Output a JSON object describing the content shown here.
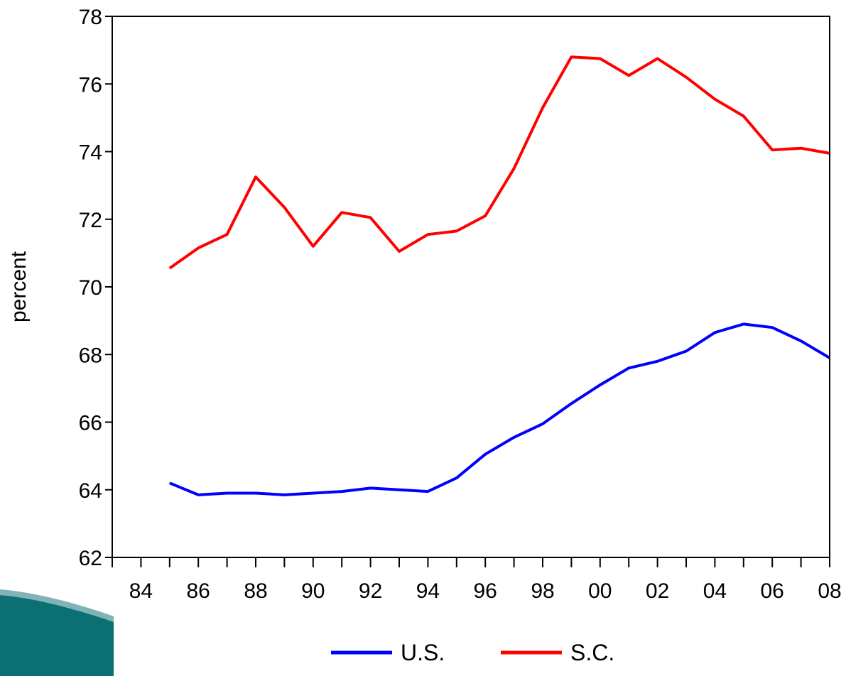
{
  "chart_data": {
    "type": "line",
    "title": "",
    "xlabel": "",
    "ylabel": "percent",
    "x": [
      1985,
      1986,
      1987,
      1988,
      1989,
      1990,
      1991,
      1992,
      1993,
      1994,
      1995,
      1996,
      1997,
      1998,
      1999,
      2000,
      2001,
      2002,
      2003,
      2004,
      2005,
      2006,
      2007,
      2008
    ],
    "xlim": [
      1983,
      2008
    ],
    "x_tick_values": [
      1984,
      1986,
      1988,
      1990,
      1992,
      1994,
      1996,
      1998,
      2000,
      2002,
      2004,
      2006,
      2008
    ],
    "x_tick_labels": [
      "84",
      "86",
      "88",
      "90",
      "92",
      "94",
      "96",
      "98",
      "00",
      "02",
      "04",
      "06",
      "08"
    ],
    "ylim": [
      62,
      78
    ],
    "y_tick_values": [
      62,
      64,
      66,
      68,
      70,
      72,
      74,
      76,
      78
    ],
    "y_tick_labels": [
      "62",
      "64",
      "66",
      "68",
      "70",
      "72",
      "74",
      "76",
      "78"
    ],
    "grid": false,
    "legend_position": "bottom",
    "series": [
      {
        "name": "U.S.",
        "color": "#0000ff",
        "values": [
          64.2,
          63.85,
          63.9,
          63.9,
          63.85,
          63.9,
          63.95,
          64.05,
          64.0,
          63.95,
          64.35,
          65.05,
          65.55,
          65.95,
          66.55,
          67.1,
          67.6,
          67.8,
          68.1,
          68.65,
          68.9,
          68.8,
          68.4,
          67.9
        ]
      },
      {
        "name": "S.C.",
        "color": "#ff0000",
        "values": [
          70.55,
          71.15,
          71.55,
          73.25,
          72.35,
          71.2,
          72.2,
          72.05,
          71.05,
          71.55,
          71.65,
          72.1,
          73.5,
          75.3,
          76.8,
          76.75,
          76.25,
          76.75,
          76.2,
          75.55,
          75.05,
          74.05,
          74.1,
          73.95
        ]
      }
    ]
  }
}
